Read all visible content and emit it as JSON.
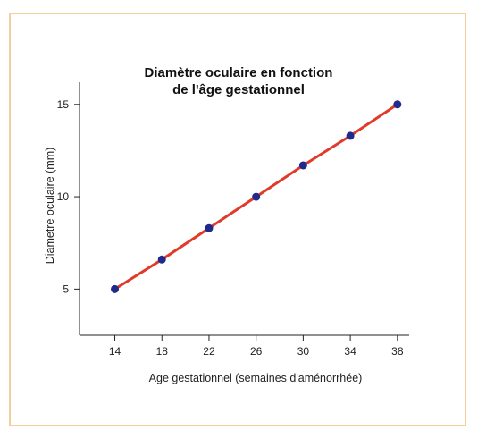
{
  "chart_data": {
    "type": "line",
    "title_lines": [
      "Diamètre oculaire en fonction",
      "de l'âge gestationnel"
    ],
    "xlabel": "Age gestationnel (semaines d'aménorrhée)",
    "ylabel": "Diametre oculaire (mm)",
    "xlim": [
      11,
      39
    ],
    "ylim": [
      2.5,
      16.2
    ],
    "xticks": [
      14,
      18,
      22,
      26,
      30,
      34,
      38
    ],
    "yticks": [
      5,
      10,
      15
    ],
    "grid": false,
    "legend": "none",
    "series": [
      {
        "x": [
          14,
          18,
          22,
          26,
          30,
          34,
          38
        ],
        "y": [
          5.0,
          6.6,
          8.3,
          10.0,
          11.7,
          13.3,
          15.0
        ]
      }
    ],
    "colors": {
      "line": "#e03b2a",
      "marker": "#1f2a8a",
      "axis": "#222222",
      "frame": "#f3cf9c"
    }
  }
}
